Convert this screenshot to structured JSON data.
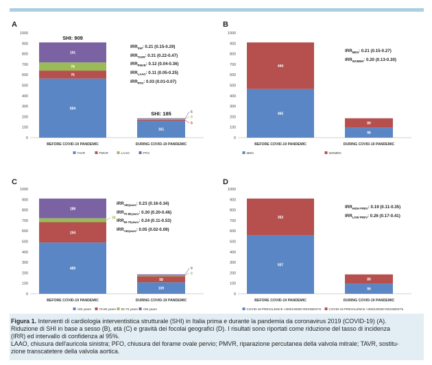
{
  "panels": [
    {
      "letter": "A",
      "chart_data": {
        "type": "bar",
        "stacked": true,
        "categories": [
          "BEFORE COVID-19 PANDEMIC",
          "DURING COVID-19 PANDEMIC"
        ],
        "series": [
          {
            "name": "TAVR",
            "values": [
              564,
              161
            ],
            "color": "#5b86c5"
          },
          {
            "name": "PMVR",
            "values": [
              76,
              9
            ],
            "color": "#b5504f"
          },
          {
            "name": "LAAO",
            "values": [
              78,
              9
            ],
            "color": "#9bbb59"
          },
          {
            "name": "PFO",
            "values": [
              191,
              6
            ],
            "color": "#7a62a3"
          }
        ],
        "data_labels": [
          [
            "564",
            "76",
            "78",
            "191"
          ],
          [
            "161",
            "9",
            "9",
            "6"
          ]
        ],
        "totals": [
          "SHI: 909",
          "SHI: 185"
        ],
        "ylim": [
          0,
          1000
        ],
        "yticks": [
          0,
          100,
          200,
          300,
          400,
          500,
          600,
          700,
          800,
          900,
          1000
        ],
        "legend": "bottom"
      },
      "irr": [
        {
          "label": "IRR",
          "sub": "SHI",
          "value": ": 0.21 (0.15-0.29)"
        },
        {
          "label": "IRR",
          "sub": "TAVR",
          "value": ": 0.31 (0.22-0.47)"
        },
        {
          "label": "IRR",
          "sub": "PMVR",
          "value": ": 0.12 (0.04-0.36)"
        },
        {
          "label": "IRR",
          "sub": "LAAO",
          "value": ": 0.11 (0.05-0.25)"
        },
        {
          "label": "IRR",
          "sub": "PFO",
          "value": ": 0.03 (0.01-0.07)"
        }
      ]
    },
    {
      "letter": "B",
      "chart_data": {
        "type": "bar",
        "stacked": true,
        "categories": [
          "BEFORE COVID-19 PANDEMIC",
          "DURING COVID-19 PANDEMIC"
        ],
        "series": [
          {
            "name": "MEN",
            "values": [
              465,
              96
            ],
            "color": "#5b86c5"
          },
          {
            "name": "WOMEN",
            "values": [
              444,
              89
            ],
            "color": "#b5504f"
          }
        ],
        "data_labels": [
          [
            "465",
            "444"
          ],
          [
            "96",
            "89"
          ]
        ],
        "totals": [
          "",
          ""
        ],
        "ylim": [
          0,
          1000
        ],
        "yticks": [
          0,
          100,
          200,
          300,
          400,
          500,
          600,
          700,
          800,
          900,
          1000
        ],
        "legend": "bottom"
      },
      "irr": [
        {
          "label": "IRR",
          "sub": "MEN",
          "value": ": 0.21 (0.15-0.27)"
        },
        {
          "label": "IRR",
          "sub": "WOMEN",
          "value": ": 0.20 (0.13-0.30)"
        }
      ]
    },
    {
      "letter": "C",
      "chart_data": {
        "type": "bar",
        "stacked": true,
        "categories": [
          "BEFORE COVID-19 PANDEMIC",
          "DURING COVID-19 PANDEMIC"
        ],
        "series": [
          {
            "name": ">80 years",
            "values": [
              489,
              109
            ],
            "color": "#5b86c5"
          },
          {
            "name": "70-80 years",
            "values": [
              194,
              58
            ],
            "color": "#b5504f"
          },
          {
            "name": "60-70 years",
            "values": [
              38,
              9
            ],
            "color": "#9bbb59"
          },
          {
            "name": "<60 years",
            "values": [
              188,
              9
            ],
            "color": "#7a62a3"
          }
        ],
        "data_labels": [
          [
            "489",
            "194",
            "38",
            "188"
          ],
          [
            "109",
            "58",
            "9",
            "9"
          ]
        ],
        "totals": [
          "",
          ""
        ],
        "ylim": [
          0,
          1000
        ],
        "yticks": [
          0,
          100,
          200,
          300,
          400,
          500,
          600,
          700,
          800,
          900,
          1000
        ],
        "legend": "bottom"
      },
      "irr": [
        {
          "label": "IRR",
          "sub": ">80years",
          "value": ": 0.23 (0.16-0.34)"
        },
        {
          "label": "IRR",
          "sub": "70-80years",
          "value": ": 0.30 (0.20-0.46)"
        },
        {
          "label": "IRR",
          "sub": "60-70years",
          "value": ": 0.24 (0.11-0.53)"
        },
        {
          "label": "IRR",
          "sub": "<60years",
          "value": ": 0.05 (0.02-0.09)"
        }
      ]
    },
    {
      "letter": "D",
      "chart_data": {
        "type": "bar",
        "stacked": true,
        "categories": [
          "BEFORE COVID-19 PANDEMIC",
          "DURING COVID-19 PANDEMIC"
        ],
        "series": [
          {
            "name": "COVID-19 PREVALENCE <300/100000 RESIDENTS",
            "values": [
              557,
              96
            ],
            "color": "#5b86c5"
          },
          {
            "name": "COVID-19 PREVALENCE >300/100000 RESIDENTS",
            "values": [
              352,
              89
            ],
            "color": "#b5504f"
          }
        ],
        "data_labels": [
          [
            "557",
            "352"
          ],
          [
            "96",
            "89"
          ]
        ],
        "totals": [
          "",
          ""
        ],
        "ylim": [
          0,
          1000
        ],
        "yticks": [
          0,
          100,
          200,
          300,
          400,
          500,
          600,
          700,
          800,
          900,
          1000
        ],
        "legend": "bottom"
      },
      "irr": [
        {
          "label": "IRR",
          "sub": "HIGH PREV",
          "value": ": 0.19 (0.11-0.35)"
        },
        {
          "label": "IRR",
          "sub": "LOW PREV",
          "value": ": 0.26 (0.17-0.41)"
        }
      ]
    }
  ],
  "caption": {
    "figure_label": "Figura 1.",
    "line1": " Interventi di cardiologia interventistica strutturale (SHI) in Italia prima e durante la pandemia da coronavirus 2019 (COVID-19) (A).",
    "line2": "Riduzione di SHI in base a sesso (B), età (C) e gravità dei focolai geografici (D). I risultati sono riportati come riduzione del tasso di incidenza",
    "line3": "(IRR) ed intervallo di confidenza al 95%.",
    "line4": "LAAO, chiusura dell'auricola sinistra; PFO, chiusura del forame ovale pervio; PMVR, riparazione percutanea della valvola mitrale; TAVR, sostitu-",
    "line5": "zione transcatetere della valvola aortica."
  }
}
